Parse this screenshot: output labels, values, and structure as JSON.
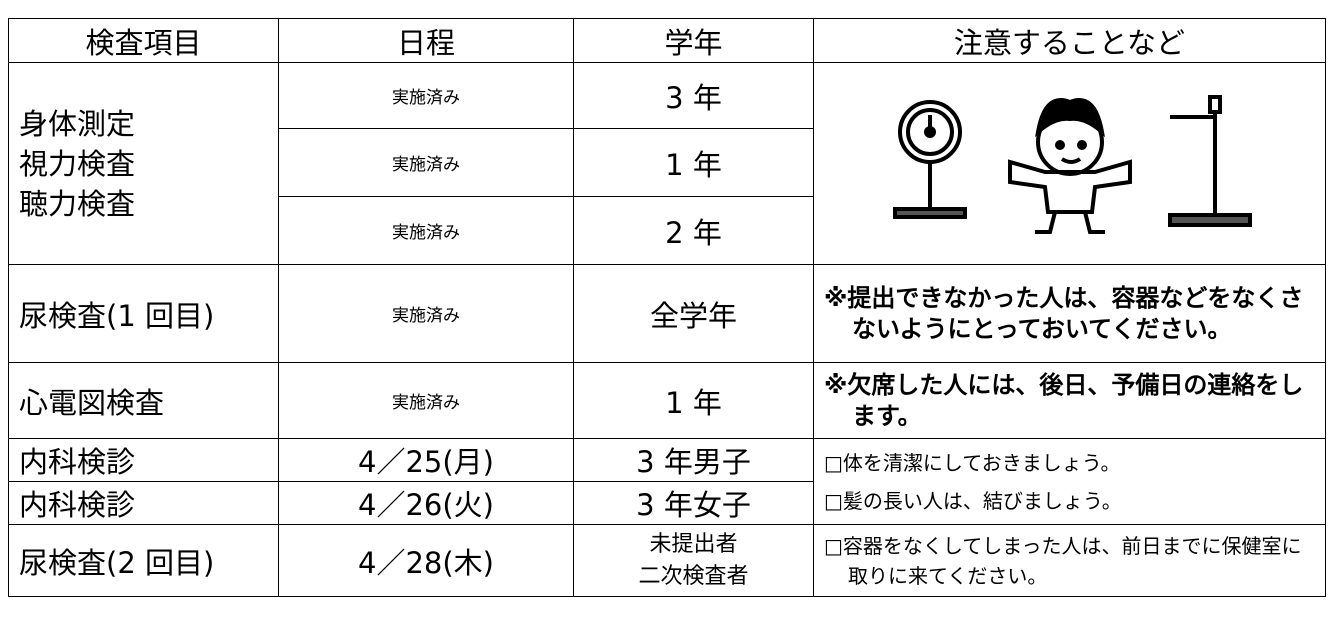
{
  "table": {
    "header": [
      "検査項目",
      "日程",
      "学年",
      "注意することなど"
    ],
    "physical": {
      "items": [
        "身体測定",
        "視力検査",
        "聴力検査"
      ],
      "rows": [
        [
          "実施済み",
          "3 年"
        ],
        [
          "実施済み",
          "1 年"
        ],
        [
          "実施済み",
          "2 年"
        ]
      ]
    },
    "urine1": {
      "item": "尿検査(1 回目)",
      "schedule": "実施済み",
      "grade": "全学年",
      "note": "※提出できなかった人は、容器などをなくさないようにとっておいてください。"
    },
    "ecg": {
      "item": "心電図検査",
      "schedule": "実施済み",
      "grade": "1 年",
      "note": "※欠席した人には、後日、予備日の連絡をします。"
    },
    "internal": {
      "rows": [
        [
          "内科検診",
          "4／25(月)",
          "3 年男子"
        ],
        [
          "内科検診",
          "4／26(火)",
          "3 年女子"
        ]
      ],
      "notes": [
        "□体を清潔にしておきましょう。",
        "□髪の長い人は、結びましょう。"
      ]
    },
    "urine2": {
      "item": "尿検査(2 回目)",
      "schedule": "4／28(木)",
      "grade": [
        "未提出者",
        "二次検査者"
      ],
      "note": "□容器をなくしてしまった人は、前日までに保健室に取りに来てください。"
    }
  }
}
